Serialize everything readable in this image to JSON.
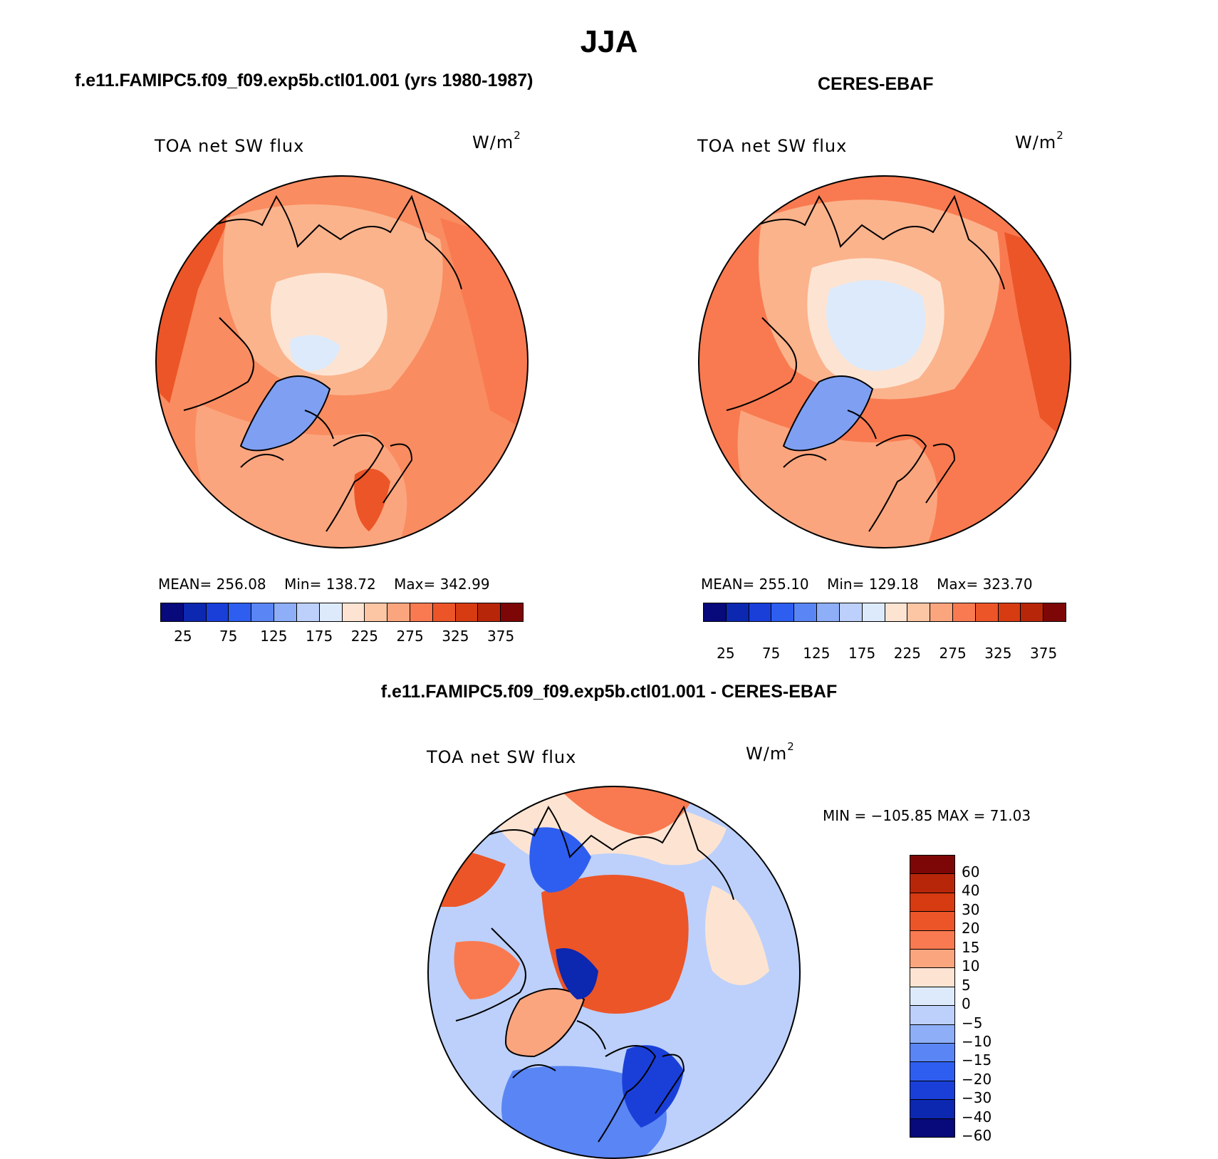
{
  "figure": {
    "title": "JJA"
  },
  "panels": {
    "model": {
      "title": "f.e11.FAMIPC5.f09_f09.exp5b.ctl01.001 (yrs 1980-1987)",
      "variable": "TOA net SW flux",
      "units_base": "W/m",
      "units_exp": "2",
      "mean_label": "MEAN=",
      "mean": "256.08",
      "min_label": "Min=",
      "min": "138.72",
      "max_label": "Max=",
      "max": "342.99"
    },
    "obs": {
      "title": "CERES-EBAF",
      "variable": "TOA net SW flux",
      "units_base": "W/m",
      "units_exp": "2",
      "mean_label": "MEAN=",
      "mean": "255.10",
      "min_label": "Min=",
      "min": "129.18",
      "max_label": "Max=",
      "max": "323.70"
    },
    "diff": {
      "title": "f.e11.FAMIPC5.f09_f09.exp5b.ctl01.001 - CERES-EBAF",
      "variable": "TOA net SW flux",
      "units_base": "W/m",
      "units_exp": "2",
      "minmax_text": "MIN = −105.85 MAX =  71.03"
    }
  },
  "colorbars": {
    "abs": {
      "colors": [
        "#08097a",
        "#0c27b0",
        "#1a3fd9",
        "#2e5ef0",
        "#5a85f4",
        "#8eaef8",
        "#bcd0fb",
        "#dceafb",
        "#fde4d2",
        "#fcc6a4",
        "#fba57e",
        "#f97a50",
        "#ec5528",
        "#d63b12",
        "#b8260a",
        "#7d0706"
      ],
      "tick_labels": [
        "25",
        "75",
        "125",
        "175",
        "225",
        "275",
        "325",
        "375"
      ]
    },
    "diff": {
      "colors": [
        "#7d0706",
        "#b8260a",
        "#d63b12",
        "#ec5528",
        "#f97a50",
        "#fba57e",
        "#fde4d2",
        "#dceafb",
        "#bcd0fb",
        "#8eaef8",
        "#5a85f4",
        "#2e5ef0",
        "#1a3fd9",
        "#0c27b0",
        "#08097a"
      ],
      "tick_labels": [
        "60",
        "40",
        "30",
        "20",
        "15",
        "10",
        "5",
        "0",
        "−5",
        "−10",
        "−15",
        "−20",
        "−30",
        "−40",
        "−60"
      ]
    }
  },
  "map_colors": {
    "warm_base": "#f98c60",
    "light_base": "#fbb38c",
    "ice_light": "#fde4d2",
    "ice_blue": "#dceafb",
    "greenland_blue": "#7e9ff2",
    "hot": "#ec5528",
    "diff_base": "#bcd0fb",
    "diff_red": "#ec5528",
    "diff_blue": "#2e5ef0"
  }
}
